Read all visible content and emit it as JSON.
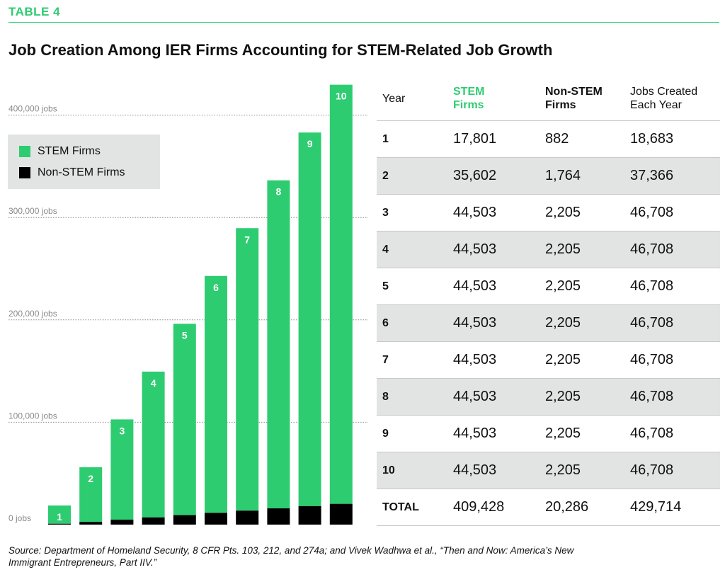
{
  "header": {
    "table_label": "TABLE 4",
    "title": "Job Creation Among IER Firms Accounting for STEM-Related Job Growth"
  },
  "legend": {
    "stem_label": "STEM Firms",
    "nonstem_label": "Non-STEM Firms"
  },
  "colors": {
    "stem": "#2ecc71",
    "nonstem": "#000000",
    "accent": "#2ecc71",
    "shade": "#e2e4e3"
  },
  "chart_data": {
    "type": "bar",
    "stacked": true,
    "categories": [
      "1",
      "2",
      "3",
      "4",
      "5",
      "6",
      "7",
      "8",
      "9",
      "10"
    ],
    "series": [
      {
        "name": "Non-STEM Firms",
        "values": [
          882,
          2646,
          4851,
          7056,
          9261,
          11466,
          13671,
          15876,
          18081,
          20286
        ]
      },
      {
        "name": "STEM Firms",
        "values": [
          17801,
          53403,
          97906,
          142409,
          186912,
          231415,
          275918,
          320421,
          364924,
          409428
        ]
      }
    ],
    "bar_labels": [
      "1",
      "2",
      "3",
      "4",
      "5",
      "6",
      "7",
      "8",
      "9",
      "10"
    ],
    "ytick_labels": [
      "0 jobs",
      "100,000 jobs",
      "200,000 jobs",
      "300,000 jobs",
      "400,000 jobs"
    ],
    "yticks": [
      0,
      100000,
      200000,
      300000,
      400000
    ],
    "ylim": [
      0,
      430000
    ],
    "grid": true,
    "legend_position": "top-left"
  },
  "table": {
    "headers": {
      "year": "Year",
      "stem_line1": "STEM",
      "stem_line2": "Firms",
      "nonstem_line1": "Non-STEM",
      "nonstem_line2": "Firms",
      "created_line1": "Jobs Created",
      "created_line2": "Each Year"
    },
    "rows": [
      {
        "year": "1",
        "stem": "17,801",
        "nonstem": "882",
        "created": "18,683"
      },
      {
        "year": "2",
        "stem": "35,602",
        "nonstem": "1,764",
        "created": "37,366"
      },
      {
        "year": "3",
        "stem": "44,503",
        "nonstem": "2,205",
        "created": "46,708"
      },
      {
        "year": "4",
        "stem": "44,503",
        "nonstem": "2,205",
        "created": "46,708"
      },
      {
        "year": "5",
        "stem": "44,503",
        "nonstem": "2,205",
        "created": "46,708"
      },
      {
        "year": "6",
        "stem": "44,503",
        "nonstem": "2,205",
        "created": "46,708"
      },
      {
        "year": "7",
        "stem": "44,503",
        "nonstem": "2,205",
        "created": "46,708"
      },
      {
        "year": "8",
        "stem": "44,503",
        "nonstem": "2,205",
        "created": "46,708"
      },
      {
        "year": "9",
        "stem": "44,503",
        "nonstem": "2,205",
        "created": "46,708"
      },
      {
        "year": "10",
        "stem": "44,503",
        "nonstem": "2,205",
        "created": "46,708"
      }
    ],
    "total": {
      "year": "TOTAL",
      "stem": "409,428",
      "nonstem": "20,286",
      "created": "429,714"
    }
  },
  "source": {
    "line1": "Source: Department of Homeland Security, 8 CFR Pts. 103, 212, and 274a; and Vivek Wadhwa et al., “Then and Now: America’s New",
    "line2": "Immigrant Entrepreneurs, Part IIV.”"
  }
}
